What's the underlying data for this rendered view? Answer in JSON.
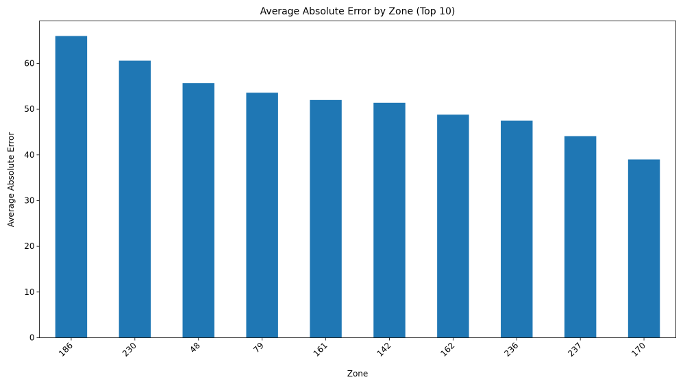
{
  "chart_data": {
    "type": "bar",
    "title": "Average Absolute Error by Zone (Top 10)",
    "xlabel": "Zone",
    "ylabel": "Average Absolute Error",
    "categories": [
      "186",
      "230",
      "48",
      "79",
      "161",
      "142",
      "162",
      "236",
      "237",
      "170"
    ],
    "values": [
      66.0,
      60.6,
      55.7,
      53.6,
      52.0,
      51.4,
      48.8,
      47.5,
      44.1,
      39.0
    ],
    "ylim": [
      0,
      69.3
    ],
    "yticks": [
      0,
      10,
      20,
      30,
      40,
      50,
      60
    ],
    "grid": false,
    "legend": "none",
    "bar_color": "#1f77b4",
    "xtick_rotation": -45
  }
}
